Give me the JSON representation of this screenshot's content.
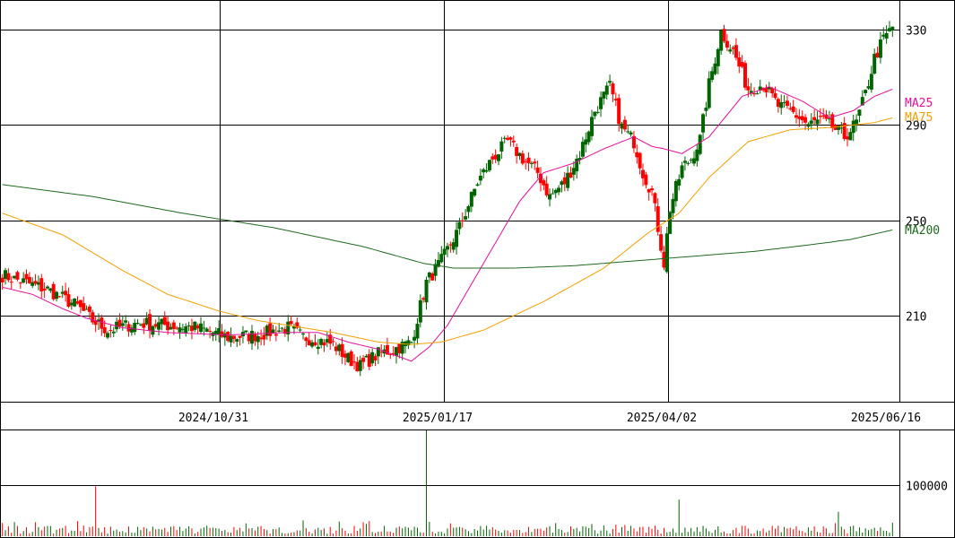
{
  "chart_data": {
    "type": "candlestick",
    "title": "",
    "price_panel": {
      "y_ticks": [
        210,
        250,
        290,
        330
      ],
      "ylim": [
        174,
        342
      ],
      "x_ticks": [
        "2024/10/31",
        "2025/01/17",
        "2025/04/02",
        "2025/06/16"
      ],
      "up_color": "#006400",
      "down_color": "#ff0000",
      "moving_averages": [
        {
          "name": "MA25",
          "color": "#e0109a"
        },
        {
          "name": "MA75",
          "color": "#f0a000"
        },
        {
          "name": "MA200",
          "color": "#1f6a1f"
        }
      ]
    },
    "volume_panel": {
      "y_ticks": [
        100000
      ],
      "ylim": [
        0,
        208000
      ],
      "up_color": "#006400",
      "down_color": "#ff0000"
    },
    "anchors": {
      "close": [
        [
          0,
          227
        ],
        [
          15,
          221
        ],
        [
          25,
          214
        ],
        [
          30,
          208
        ],
        [
          35,
          204
        ],
        [
          45,
          207
        ],
        [
          55,
          206
        ],
        [
          65,
          205
        ],
        [
          75,
          201
        ],
        [
          85,
          202
        ],
        [
          95,
          205
        ],
        [
          100,
          201
        ],
        [
          105,
          200
        ],
        [
          110,
          198
        ],
        [
          115,
          192
        ],
        [
          119,
          189
        ],
        [
          125,
          194
        ],
        [
          130,
          196
        ],
        [
          136,
          199
        ],
        [
          141,
          224
        ],
        [
          146,
          233
        ],
        [
          152,
          247
        ],
        [
          158,
          266
        ],
        [
          163,
          276
        ],
        [
          168,
          283
        ],
        [
          173,
          276
        ],
        [
          178,
          270
        ],
        [
          182,
          260
        ],
        [
          187,
          266
        ],
        [
          192,
          278
        ],
        [
          197,
          296
        ],
        [
          202,
          306
        ],
        [
          206,
          289
        ],
        [
          210,
          283
        ],
        [
          213,
          270
        ],
        [
          216,
          262
        ],
        [
          218,
          247
        ],
        [
          220,
          232
        ],
        [
          222,
          255
        ],
        [
          226,
          272
        ],
        [
          229,
          276
        ],
        [
          232,
          284
        ],
        [
          235,
          307
        ],
        [
          239,
          329
        ],
        [
          243,
          321
        ],
        [
          248,
          305
        ],
        [
          253,
          307
        ],
        [
          258,
          298
        ],
        [
          263,
          295
        ],
        [
          268,
          290
        ],
        [
          272,
          292
        ],
        [
          276,
          289
        ],
        [
          280,
          285
        ],
        [
          284,
          291
        ],
        [
          287,
          303
        ],
        [
          290,
          318
        ],
        [
          293,
          326
        ],
        [
          296,
          331
        ]
      ],
      "ma25": [
        [
          0,
          222
        ],
        [
          10,
          219
        ],
        [
          20,
          213
        ],
        [
          28,
          209
        ],
        [
          40,
          205
        ],
        [
          55,
          203
        ],
        [
          75,
          202
        ],
        [
          95,
          203
        ],
        [
          105,
          203
        ],
        [
          115,
          199
        ],
        [
          125,
          196
        ],
        [
          136,
          191
        ],
        [
          142,
          197
        ],
        [
          148,
          206
        ],
        [
          160,
          232
        ],
        [
          172,
          258
        ],
        [
          180,
          270
        ],
        [
          190,
          274
        ],
        [
          200,
          280
        ],
        [
          210,
          285
        ],
        [
          216,
          281
        ],
        [
          220,
          280
        ],
        [
          226,
          278
        ],
        [
          235,
          285
        ],
        [
          246,
          302
        ],
        [
          255,
          306
        ],
        [
          266,
          300
        ],
        [
          275,
          293
        ],
        [
          283,
          296
        ],
        [
          290,
          302
        ],
        [
          296,
          305
        ]
      ],
      "ma75": [
        [
          0,
          253
        ],
        [
          20,
          244
        ],
        [
          40,
          229
        ],
        [
          55,
          219
        ],
        [
          72,
          212
        ],
        [
          85,
          208
        ],
        [
          95,
          206
        ],
        [
          110,
          203
        ],
        [
          125,
          199
        ],
        [
          136,
          198
        ],
        [
          146,
          199
        ],
        [
          160,
          204
        ],
        [
          180,
          216
        ],
        [
          200,
          230
        ],
        [
          215,
          245
        ],
        [
          225,
          253
        ],
        [
          235,
          268
        ],
        [
          248,
          283
        ],
        [
          262,
          288
        ],
        [
          276,
          289
        ],
        [
          290,
          291
        ],
        [
          296,
          293
        ]
      ],
      "ma200": [
        [
          0,
          265
        ],
        [
          30,
          260
        ],
        [
          60,
          253
        ],
        [
          90,
          247
        ],
        [
          120,
          239
        ],
        [
          140,
          232
        ],
        [
          150,
          230
        ],
        [
          170,
          230
        ],
        [
          190,
          231
        ],
        [
          210,
          233
        ],
        [
          230,
          235
        ],
        [
          250,
          237
        ],
        [
          270,
          240
        ],
        [
          282,
          242
        ],
        [
          296,
          246
        ]
      ]
    },
    "volume_spikes": [
      [
        0,
        26000
      ],
      [
        31,
        98000
      ],
      [
        141,
        208000
      ],
      [
        207,
        22000
      ],
      [
        225,
        72000
      ],
      [
        278,
        48000
      ]
    ]
  }
}
